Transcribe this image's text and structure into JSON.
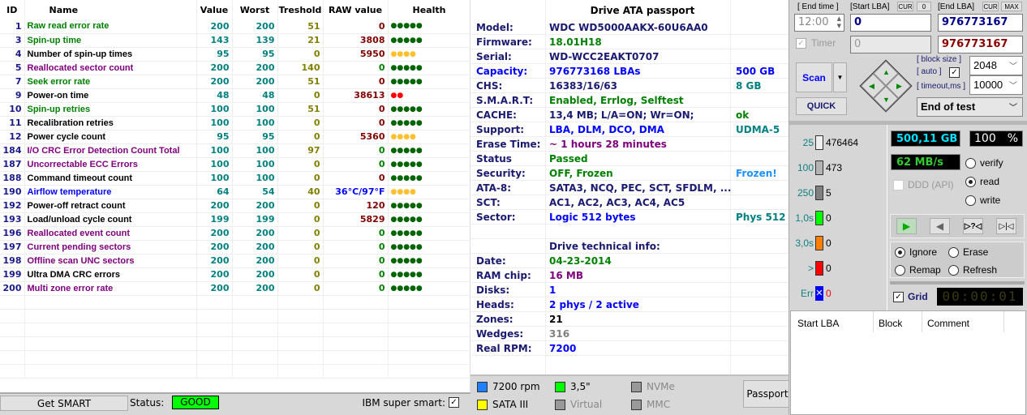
{
  "smart": {
    "columns": [
      "ID",
      "Name",
      "Value",
      "Worst",
      "Treshold",
      "RAW value",
      "Health"
    ],
    "rows": [
      {
        "id": "1",
        "name": "Raw read error rate",
        "name_color": "#008000",
        "value": "200",
        "worst": "200",
        "threshold": "51",
        "raw": "0",
        "raw_color": "#800000",
        "health": 5,
        "health_color": "#006400"
      },
      {
        "id": "3",
        "name": "Spin-up time",
        "name_color": "#008000",
        "value": "143",
        "worst": "139",
        "threshold": "21",
        "raw": "3808",
        "raw_color": "#800000",
        "health": 5,
        "health_color": "#006400"
      },
      {
        "id": "4",
        "name": "Number of spin-up times",
        "name_color": "#000000",
        "value": "95",
        "worst": "95",
        "threshold": "0",
        "raw": "5950",
        "raw_color": "#800000",
        "health": 4,
        "health_color": "#ffc030"
      },
      {
        "id": "5",
        "name": "Reallocated sector count",
        "name_color": "#800080",
        "value": "200",
        "worst": "200",
        "threshold": "140",
        "raw": "0",
        "raw_color": "#008000",
        "health": 5,
        "health_color": "#006400"
      },
      {
        "id": "7",
        "name": "Seek error rate",
        "name_color": "#008000",
        "value": "200",
        "worst": "200",
        "threshold": "51",
        "raw": "0",
        "raw_color": "#800000",
        "health": 5,
        "health_color": "#006400"
      },
      {
        "id": "9",
        "name": "Power-on time",
        "name_color": "#000000",
        "value": "48",
        "worst": "48",
        "threshold": "0",
        "raw": "38613",
        "raw_color": "#800000",
        "health": 2,
        "health_color": "#ff0000"
      },
      {
        "id": "10",
        "name": "Spin-up retries",
        "name_color": "#008000",
        "value": "100",
        "worst": "100",
        "threshold": "51",
        "raw": "0",
        "raw_color": "#800000",
        "health": 5,
        "health_color": "#006400"
      },
      {
        "id": "11",
        "name": "Recalibration retries",
        "name_color": "#000000",
        "value": "100",
        "worst": "100",
        "threshold": "0",
        "raw": "0",
        "raw_color": "#800000",
        "health": 5,
        "health_color": "#006400"
      },
      {
        "id": "12",
        "name": "Power cycle count",
        "name_color": "#000000",
        "value": "95",
        "worst": "95",
        "threshold": "0",
        "raw": "5360",
        "raw_color": "#800000",
        "health": 4,
        "health_color": "#ffc030"
      },
      {
        "id": "184",
        "name": "I/O CRC Error Detection Count Total",
        "name_color": "#800080",
        "value": "100",
        "worst": "100",
        "threshold": "97",
        "raw": "0",
        "raw_color": "#008000",
        "health": 5,
        "health_color": "#006400"
      },
      {
        "id": "187",
        "name": "Uncorrectable ECC Errors",
        "name_color": "#800080",
        "value": "100",
        "worst": "100",
        "threshold": "0",
        "raw": "0",
        "raw_color": "#008000",
        "health": 5,
        "health_color": "#006400"
      },
      {
        "id": "188",
        "name": "Command timeout count",
        "name_color": "#000000",
        "value": "100",
        "worst": "100",
        "threshold": "0",
        "raw": "0",
        "raw_color": "#800000",
        "health": 5,
        "health_color": "#006400"
      },
      {
        "id": "190",
        "name": "Airflow temperature",
        "name_color": "#0000ff",
        "value": "64",
        "worst": "54",
        "threshold": "40",
        "raw": "36°C/97°F",
        "raw_color": "#0000ff",
        "health": 4,
        "health_color": "#ffc030"
      },
      {
        "id": "192",
        "name": "Power-off retract count",
        "name_color": "#000000",
        "value": "200",
        "worst": "200",
        "threshold": "0",
        "raw": "120",
        "raw_color": "#800000",
        "health": 5,
        "health_color": "#006400"
      },
      {
        "id": "193",
        "name": "Load/unload cycle count",
        "name_color": "#000000",
        "value": "199",
        "worst": "199",
        "threshold": "0",
        "raw": "5829",
        "raw_color": "#800000",
        "health": 5,
        "health_color": "#006400"
      },
      {
        "id": "196",
        "name": "Reallocated event count",
        "name_color": "#800080",
        "value": "200",
        "worst": "200",
        "threshold": "0",
        "raw": "0",
        "raw_color": "#008000",
        "health": 5,
        "health_color": "#006400"
      },
      {
        "id": "197",
        "name": "Current pending sectors",
        "name_color": "#800080",
        "value": "200",
        "worst": "200",
        "threshold": "0",
        "raw": "0",
        "raw_color": "#008000",
        "health": 5,
        "health_color": "#006400"
      },
      {
        "id": "198",
        "name": "Offline scan UNC sectors",
        "name_color": "#800080",
        "value": "200",
        "worst": "200",
        "threshold": "0",
        "raw": "0",
        "raw_color": "#008000",
        "health": 5,
        "health_color": "#006400"
      },
      {
        "id": "199",
        "name": "Ultra DMA CRC errors",
        "name_color": "#000000",
        "value": "200",
        "worst": "200",
        "threshold": "0",
        "raw": "0",
        "raw_color": "#008000",
        "health": 5,
        "health_color": "#006400"
      },
      {
        "id": "200",
        "name": "Multi zone error rate",
        "name_color": "#800080",
        "value": "200",
        "worst": "200",
        "threshold": "0",
        "raw": "0",
        "raw_color": "#008000",
        "health": 5,
        "health_color": "#006400"
      }
    ],
    "get_smart_label": "Get SMART",
    "status_label": "Status:",
    "status_value": "GOOD",
    "status_color": "#00ff00",
    "ibm_label": "IBM super smart:",
    "ibm_checked": true
  },
  "passport": {
    "title": "Drive ATA passport",
    "rows": [
      {
        "label": "Model:",
        "value": "WDC WD5000AAKX-60U6AA0",
        "value_color": "#1a1a70",
        "extra": "",
        "extra_color": ""
      },
      {
        "label": "Firmware:",
        "value": "18.01H18",
        "value_color": "#008000",
        "extra": "",
        "extra_color": ""
      },
      {
        "label": "Serial:",
        "value": "WD-WCC2EAKT0707",
        "value_color": "#1a1a70",
        "extra": "",
        "extra_color": ""
      },
      {
        "label": "Capacity:",
        "label_color": "#0000ff",
        "value": "976773168 LBAs",
        "value_color": "#0000ff",
        "extra": "500 GB",
        "extra_color": "#0000ff"
      },
      {
        "label": "CHS:",
        "value": "16383/16/63",
        "value_color": "#1a1a70",
        "extra": "8 GB",
        "extra_color": "#008080"
      },
      {
        "label": "S.M.A.R.T:",
        "value": "Enabled, Errlog, Selftest",
        "value_color": "#008000",
        "extra": "",
        "extra_color": ""
      },
      {
        "label": "CACHE:",
        "value": "13,4 MB; L/A=ON; Wr=ON;",
        "value_color": "#1a1a70",
        "extra": "ok",
        "extra_color": "#008000"
      },
      {
        "label": "Support:",
        "value": "LBA, DLM, DCO, DMA",
        "value_color": "#0000ff",
        "extra": "UDMA-5",
        "extra_color": "#008080"
      },
      {
        "label": "Erase Time:",
        "value": "~ 1 hours 28 minutes",
        "value_color": "#800080",
        "extra": "",
        "extra_color": ""
      },
      {
        "label": "Status",
        "value": "Passed",
        "value_color": "#008000",
        "extra": "",
        "extra_color": ""
      },
      {
        "label": "Security:",
        "value": "OFF, Frozen",
        "value_color": "#008000",
        "extra": "Frozen!",
        "extra_color": "#1e90ff"
      },
      {
        "label": "ATA-8:",
        "value": "SATA3, NCQ, PEC, SCT, SFDLM, ...",
        "value_color": "#1a1a70",
        "extra": "",
        "extra_color": ""
      },
      {
        "label": "SCT:",
        "value": "AC1, AC2, AC3, AC4, AC5",
        "value_color": "#1a1a70",
        "extra": "",
        "extra_color": ""
      },
      {
        "label": "Sector:",
        "value": "Logic 512 bytes",
        "value_color": "#0000ff",
        "extra": "Phys 512",
        "extra_color": "#008080"
      },
      {
        "label": "",
        "value": "",
        "value_color": "",
        "extra": "",
        "extra_color": ""
      },
      {
        "label": "",
        "value": "Drive technical info:",
        "value_color": "#1a1a70",
        "extra": "",
        "extra_color": ""
      },
      {
        "label": "Date:",
        "value": "04-23-2014",
        "value_color": "#008000",
        "extra": "",
        "extra_color": ""
      },
      {
        "label": "RAM chip:",
        "value": "16 MB",
        "value_color": "#800080",
        "extra": "",
        "extra_color": ""
      },
      {
        "label": "Disks:",
        "value": "1",
        "value_color": "#0000ff",
        "extra": "",
        "extra_color": ""
      },
      {
        "label": "Heads:",
        "value": "2 phys / 2 active",
        "value_color": "#0000ff",
        "extra": "",
        "extra_color": ""
      },
      {
        "label": "Zones:",
        "value": "21",
        "value_color": "#000000",
        "extra": "",
        "extra_color": ""
      },
      {
        "label": "Wedges:",
        "value": "316",
        "value_color": "#808080",
        "extra": "",
        "extra_color": ""
      },
      {
        "label": "Real RPM:",
        "value": "7200",
        "value_color": "#0000ff",
        "extra": "",
        "extra_color": ""
      }
    ],
    "legend": [
      {
        "label": "7200 rpm",
        "color": "#1e7fff",
        "enabled": true
      },
      {
        "label": "SATA III",
        "color": "#ffff00",
        "enabled": true
      },
      {
        "label": "3,5\"",
        "color": "#00ff00",
        "enabled": true
      },
      {
        "label": "Virtual",
        "color": "#999999",
        "enabled": false
      },
      {
        "label": "NVMe",
        "color": "#999999",
        "enabled": false
      },
      {
        "label": "MMC",
        "color": "#999999",
        "enabled": false
      }
    ],
    "passport_button": "Passport"
  },
  "control": {
    "end_time_label": "[ End time ]",
    "end_time_value": "12:00",
    "start_lba_label": "[Start LBA]",
    "cur_label": "CUR",
    "start_cur_value": "0",
    "end_lba_label": "[End LBA]",
    "max_label": "MAX",
    "start_lba_value": "0",
    "end_lba_value": "976773167",
    "timer_label": "Timer",
    "timer_value": "0",
    "end_lba_value2": "976773167",
    "scan_label": "Scan",
    "quick_label": "QUICK",
    "block_size_label": "[ block size ]",
    "auto_label": "[ auto ]",
    "timeout_label": "[ timeout,ms ]",
    "block_size_value": "2048",
    "timeout_value": "10000",
    "end_action_value": "End of test",
    "blocks": [
      {
        "label": "25",
        "count": "476464",
        "color": "#eeeeee",
        "count_color": "#000"
      },
      {
        "label": "100",
        "count": "473",
        "color": "#b4b4b4",
        "count_color": "#000"
      },
      {
        "label": "250",
        "count": "5",
        "color": "#808080",
        "count_color": "#000"
      },
      {
        "label": "1,0s",
        "count": "0",
        "color": "#00ff00",
        "count_color": "#000"
      },
      {
        "label": "3,0s",
        "count": "0",
        "color": "#ff8000",
        "count_color": "#000"
      },
      {
        "label": ">",
        "count": "0",
        "color": "#ff0000",
        "count_color": "#000"
      },
      {
        "label": "Err",
        "count": "0",
        "color": "#0000ff",
        "count_color": "#ff0000"
      }
    ],
    "size_readout": "500,11 GB",
    "percent_readout": "100",
    "percent_sign": "%",
    "speed_readout": "62 MB/s",
    "ddd_label": "DDD (API)",
    "modes": [
      "verify",
      "read",
      "write"
    ],
    "mode_selected": "read",
    "actions": [
      "Ignore",
      "Erase",
      "Remap",
      "Refresh"
    ],
    "action_selected": "Ignore",
    "grid_label": "Grid",
    "timer_display": "00:00:01",
    "log_columns": [
      "Start LBA",
      "Block",
      "Comment"
    ]
  }
}
